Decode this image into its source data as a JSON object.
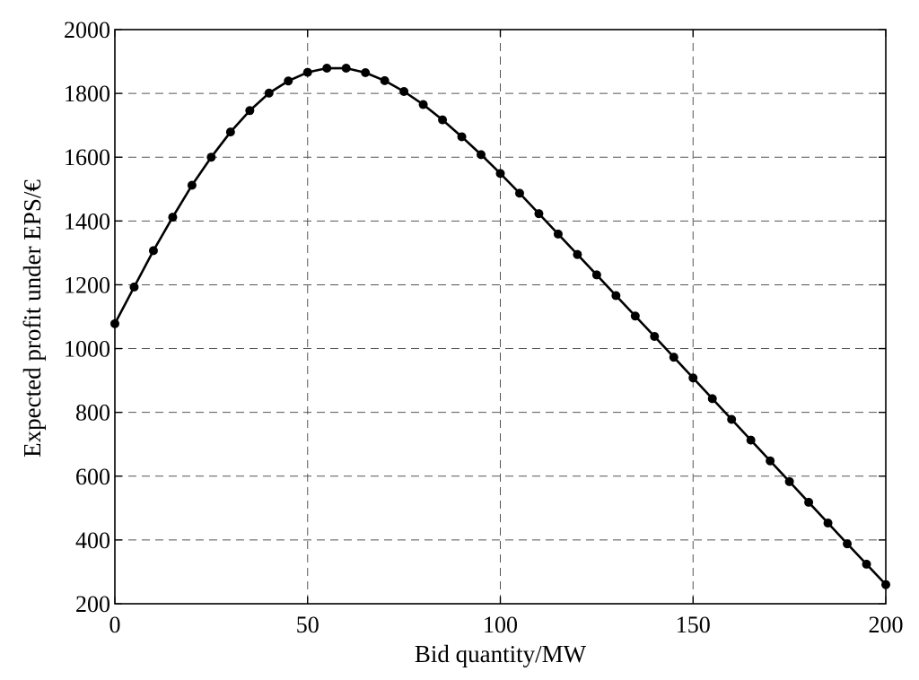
{
  "chart_data": {
    "type": "line",
    "title": "",
    "xlabel": "Bid quantity/MW",
    "ylabel": "Expected profit under EPS/€",
    "xlim": [
      0,
      200
    ],
    "ylim": [
      200,
      2000
    ],
    "x_ticks": [
      0,
      50,
      100,
      150,
      200
    ],
    "y_ticks": [
      200,
      400,
      600,
      800,
      1000,
      1200,
      1400,
      1600,
      1800,
      2000
    ],
    "grid": true,
    "grid_style": "dashed",
    "series": [
      {
        "marker": "circle",
        "color": "#000000",
        "x": [
          0,
          5,
          10,
          15,
          20,
          25,
          30,
          35,
          40,
          45,
          50,
          55,
          60,
          65,
          70,
          75,
          80,
          85,
          90,
          95,
          100,
          105,
          110,
          115,
          120,
          125,
          130,
          135,
          140,
          145,
          150,
          155,
          160,
          165,
          170,
          175,
          180,
          185,
          190,
          195,
          200
        ],
        "y": [
          1078,
          1193,
          1307,
          1412,
          1512,
          1600,
          1679,
          1746,
          1801,
          1839,
          1866,
          1879,
          1879,
          1865,
          1840,
          1806,
          1765,
          1717,
          1664,
          1608,
          1549,
          1487,
          1423,
          1359,
          1295,
          1231,
          1166,
          1102,
          1038,
          973,
          908,
          843,
          778,
          713,
          648,
          583,
          518,
          453,
          388,
          324,
          260
        ]
      }
    ]
  }
}
